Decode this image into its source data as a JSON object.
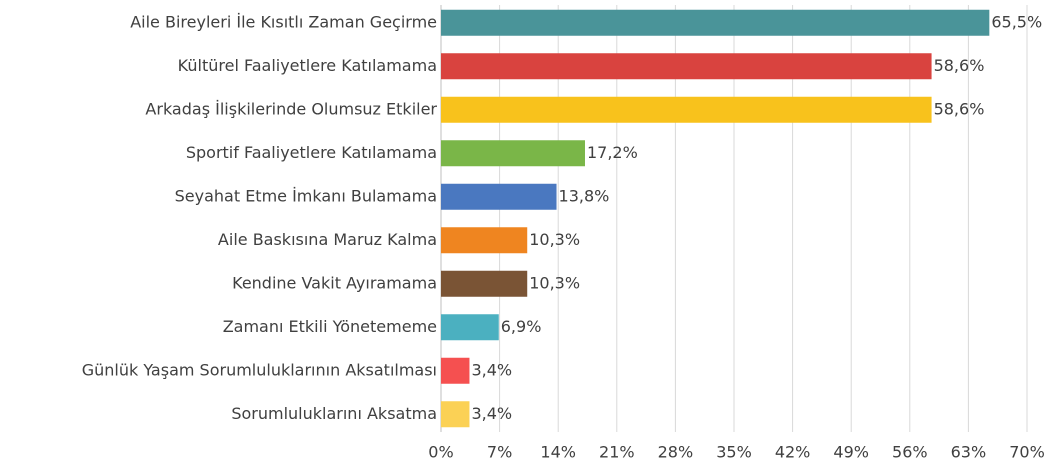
{
  "chart_data": {
    "type": "hbar",
    "categories": [
      "Aile Bireyleri İle Kısıtlı Zaman Geçirme",
      "Kültürel Faaliyetlere Katılamama",
      "Arkadaş İlişkilerinde Olumsuz Etkiler",
      "Sportif Faaliyetlere Katılamama",
      "Seyahat Etme İmkanı Bulamama",
      "Aile Baskısına Maruz Kalma",
      "Kendine Vakit Ayıramama",
      "Zamanı Etkili Yönetememe",
      "Günlük Yaşam Sorumluluklarının Aksatılması",
      "Sorumluluklarını Aksatma"
    ],
    "values": [
      65.5,
      58.6,
      58.6,
      17.2,
      13.8,
      10.3,
      10.3,
      6.9,
      3.4,
      3.4
    ],
    "value_labels": [
      "65,5%",
      "58,6%",
      "58,6%",
      "17,2%",
      "13,8%",
      "10,3%",
      "10,3%",
      "6,9%",
      "3,4%",
      "3,4%"
    ],
    "colors": [
      "#4a9499",
      "#d9433f",
      "#f8c21c",
      "#7ab648",
      "#4a78c0",
      "#ef8520",
      "#7a5435",
      "#4bb0c0",
      "#f55050",
      "#fbd155"
    ],
    "xlim": [
      0,
      70
    ],
    "xticks": [
      {
        "value": 0,
        "label": "0%"
      },
      {
        "value": 7,
        "label": "7%"
      },
      {
        "value": 14,
        "label": "14%"
      },
      {
        "value": 21,
        "label": "21%"
      },
      {
        "value": 28,
        "label": "28%"
      },
      {
        "value": 35,
        "label": "35%"
      },
      {
        "value": 42,
        "label": "42%"
      },
      {
        "value": 49,
        "label": "49%"
      },
      {
        "value": 56,
        "label": "56%"
      },
      {
        "value": 63,
        "label": "63%"
      },
      {
        "value": 70,
        "label": "70%"
      }
    ],
    "grid": true
  }
}
